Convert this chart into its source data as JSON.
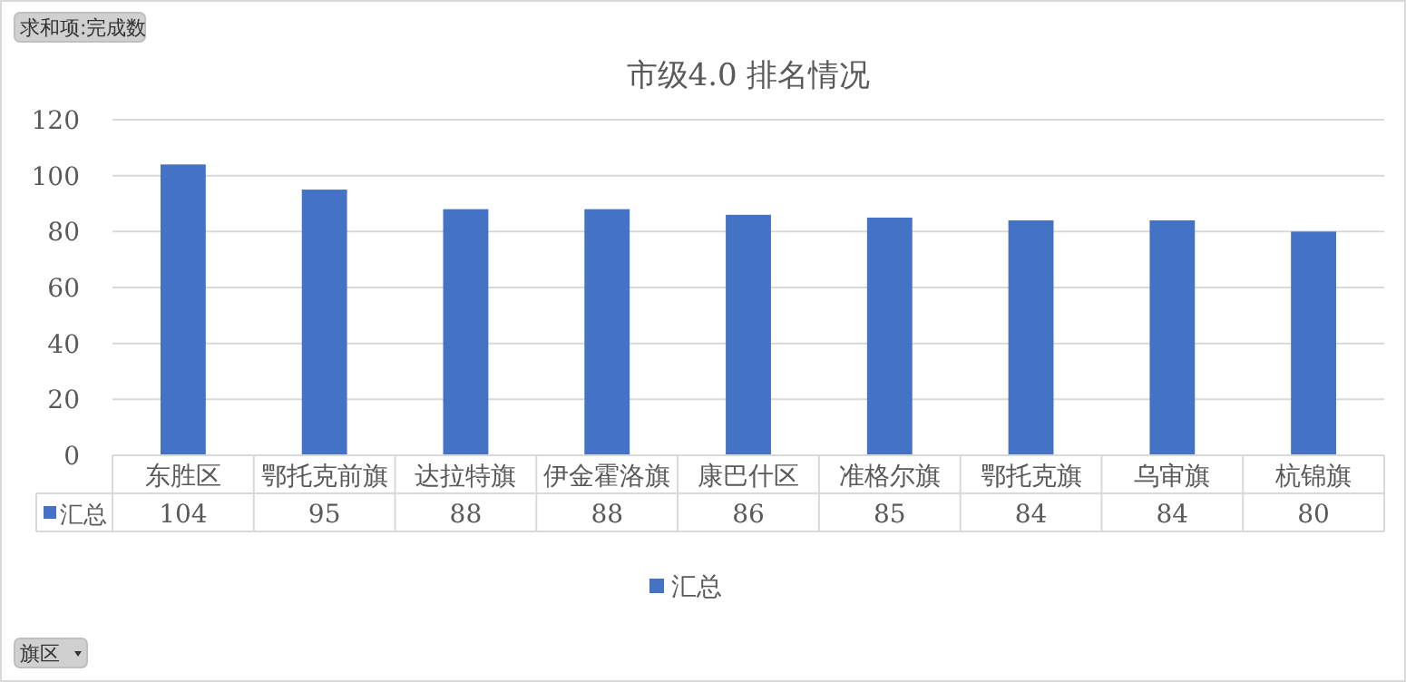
{
  "chart_data": {
    "type": "bar",
    "title": "市级4.0  排名情况",
    "categories": [
      "东胜区",
      "鄂托克前旗",
      "达拉特旗",
      "伊金霍洛旗",
      "康巴什区",
      "准格尔旗",
      "鄂托克旗",
      "乌审旗",
      "杭锦旗"
    ],
    "series": [
      {
        "name": "汇总",
        "color": "#4472c4",
        "values": [
          104,
          95,
          88,
          88,
          86,
          85,
          84,
          84,
          80
        ]
      }
    ],
    "ylim": [
      0,
      120
    ],
    "yticks": [
      0,
      20,
      40,
      60,
      80,
      100,
      120
    ],
    "grid": "y",
    "legend": "bottom",
    "data_labels": true,
    "annotations": [
      "求和项:完成数",
      "旗区"
    ]
  }
}
